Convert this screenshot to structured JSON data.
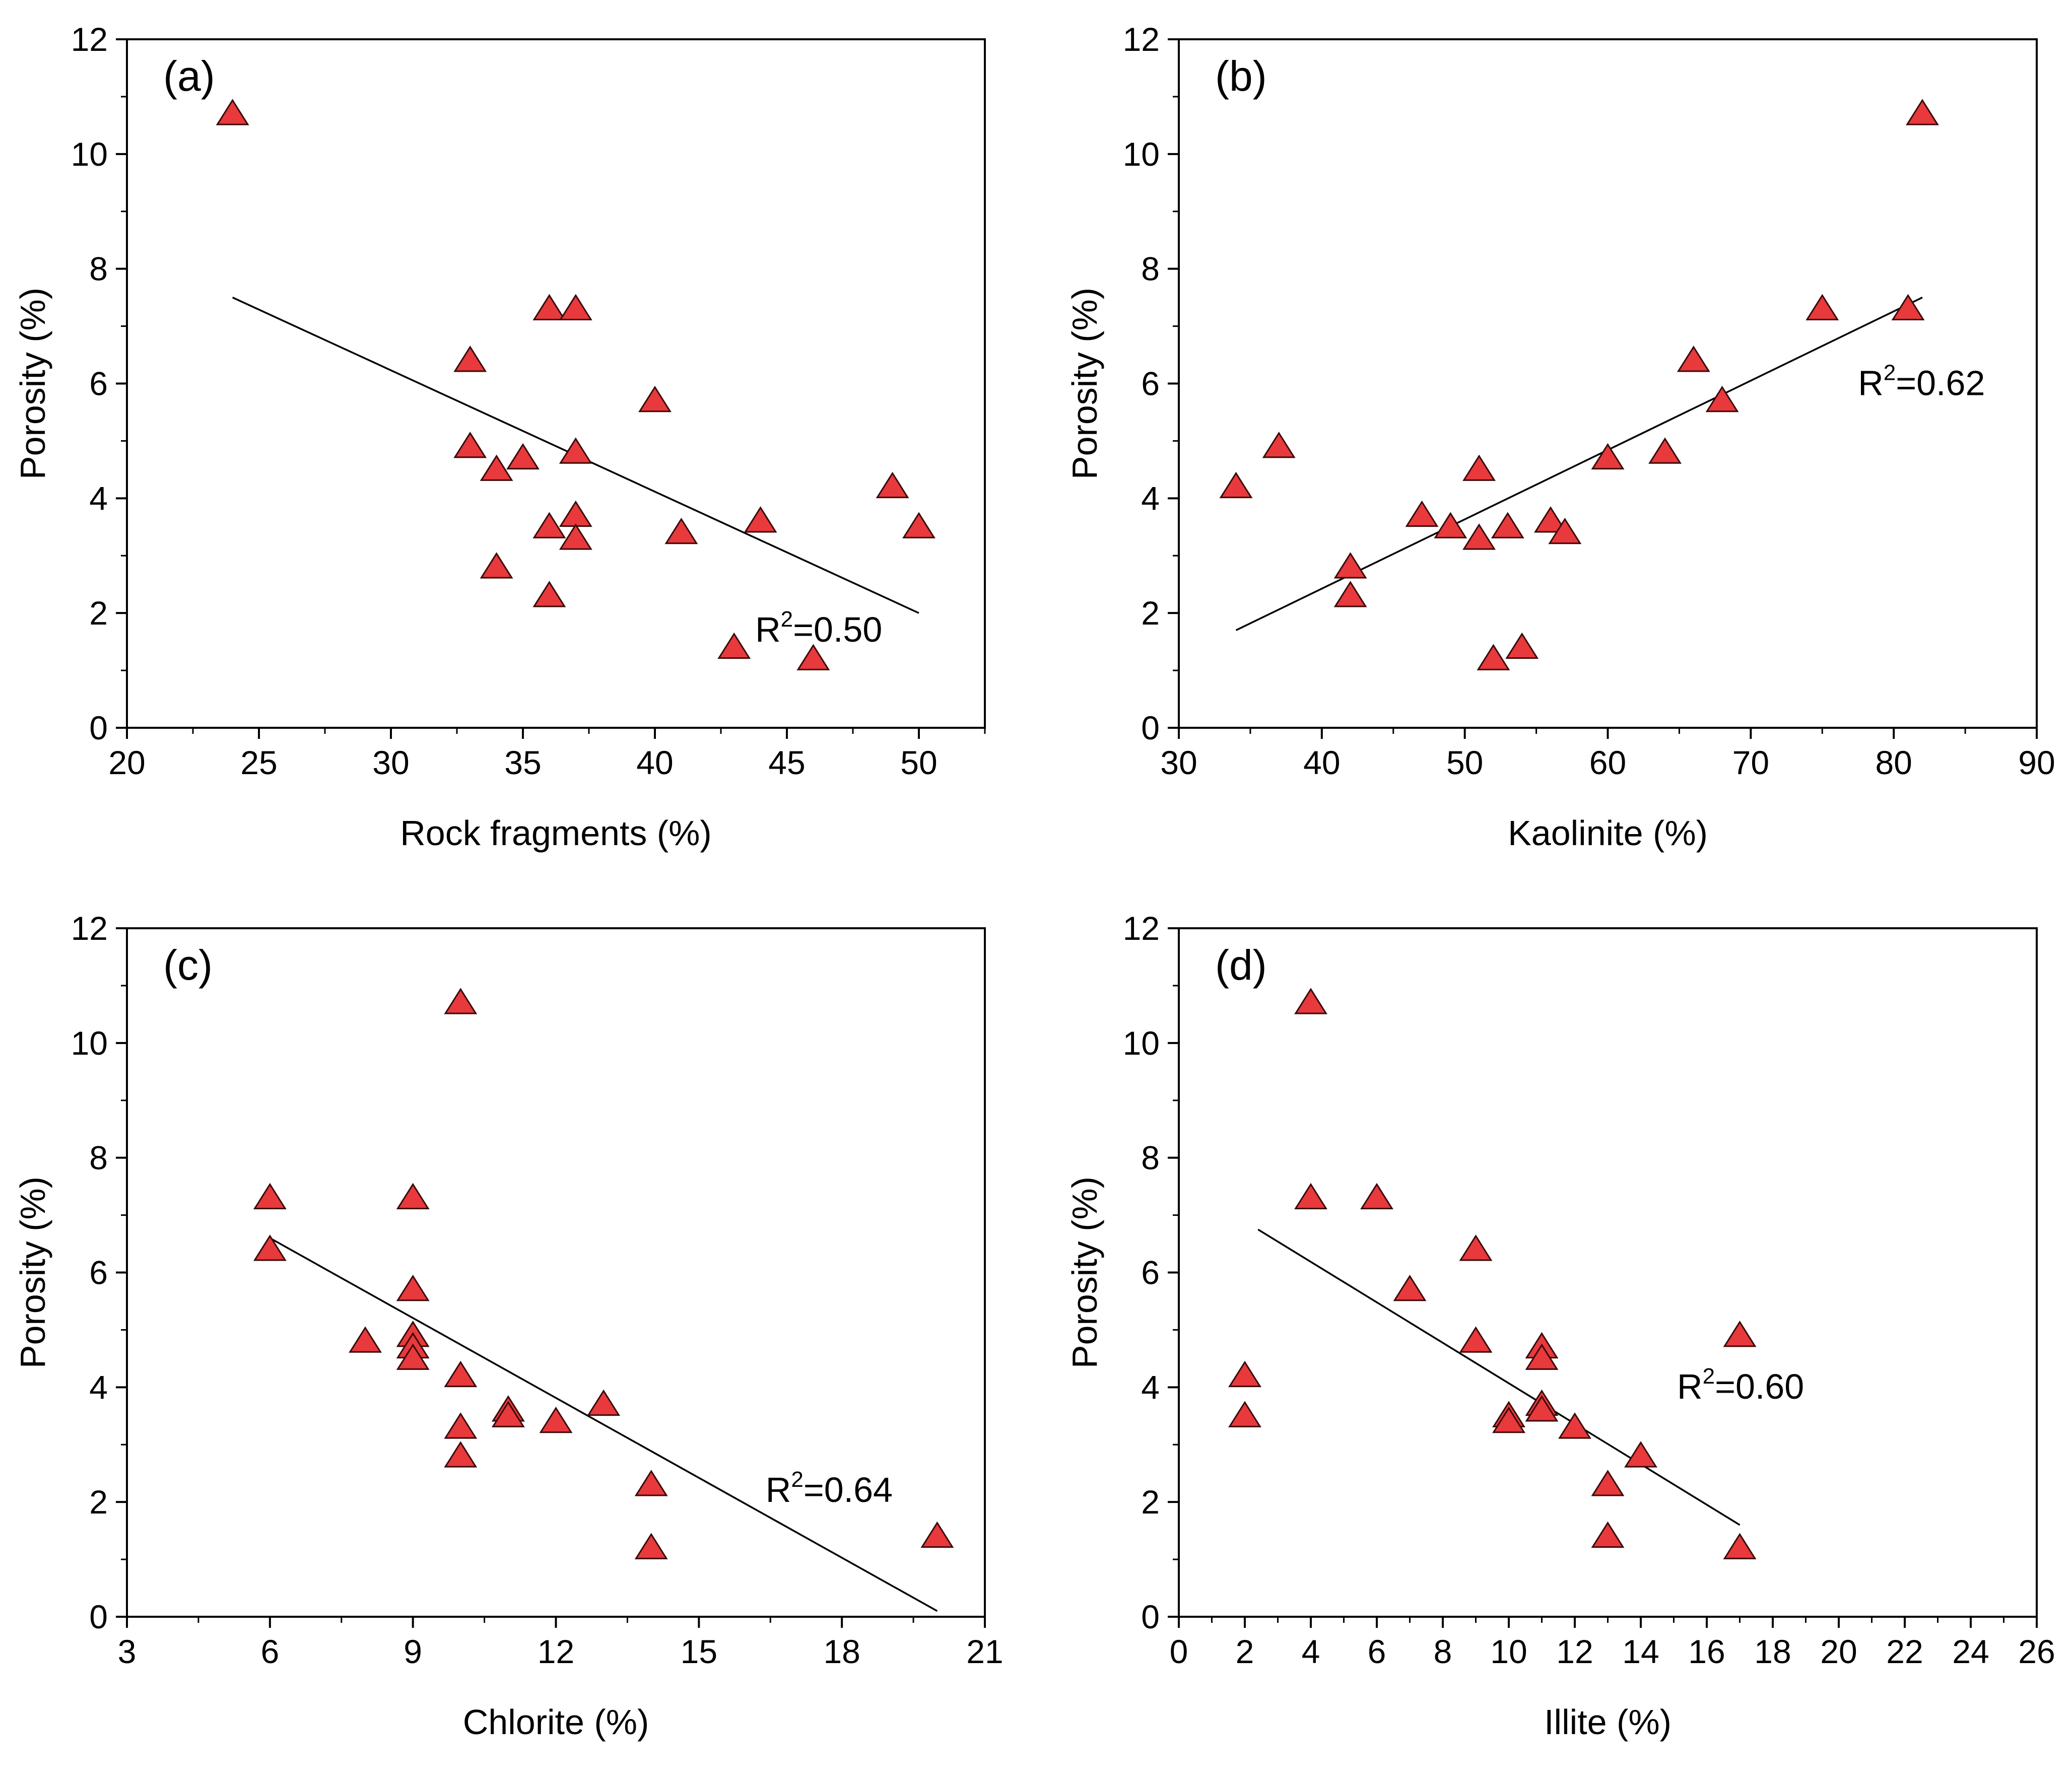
{
  "style": {
    "marker_fill": "#e8393c",
    "marker_stroke": "#3a0a0a",
    "line_color": "#000000"
  },
  "chart_data": [
    {
      "type": "scatter",
      "panel_label": "(a)",
      "xlabel": "Rock fragments (%)",
      "ylabel": "Porosity (%)",
      "xlim": [
        20,
        52.5
      ],
      "ylim": [
        0,
        12
      ],
      "xticks": [
        20,
        25,
        30,
        35,
        40,
        45,
        50
      ],
      "yticks": [
        0,
        2,
        4,
        6,
        8,
        10,
        12
      ],
      "x": [
        24,
        33,
        33,
        34,
        34,
        35,
        36,
        36,
        36,
        37,
        37,
        37,
        37,
        40,
        41,
        43,
        44,
        46,
        49,
        50
      ],
      "y": [
        10.7,
        6.4,
        4.9,
        4.5,
        2.8,
        4.7,
        7.3,
        3.5,
        2.3,
        7.3,
        4.8,
        3.7,
        3.3,
        5.7,
        3.4,
        1.4,
        3.6,
        1.2,
        4.2,
        3.5
      ],
      "fit_line": [
        [
          24,
          7.5
        ],
        [
          50,
          2.0
        ]
      ],
      "r2_text": {
        "base": "R",
        "sup": "2",
        "value": "=0.50",
        "x": 43.8,
        "y": 1.5
      }
    },
    {
      "type": "scatter",
      "panel_label": "(b)",
      "xlabel": "Kaolinite (%)",
      "ylabel": "Porosity (%)",
      "xlim": [
        30,
        90
      ],
      "ylim": [
        0,
        12
      ],
      "xticks": [
        30,
        40,
        50,
        60,
        70,
        80,
        90
      ],
      "yticks": [
        0,
        2,
        4,
        6,
        8,
        10,
        12
      ],
      "x": [
        34,
        37,
        42,
        42,
        47,
        49,
        51,
        51,
        52,
        53,
        54,
        56,
        57,
        60,
        64,
        66,
        68,
        75,
        81,
        82
      ],
      "y": [
        4.2,
        4.9,
        2.8,
        2.3,
        3.7,
        3.5,
        4.5,
        3.3,
        1.2,
        3.5,
        1.4,
        3.6,
        3.4,
        4.7,
        4.8,
        6.4,
        5.7,
        7.3,
        7.3,
        10.7
      ],
      "fit_line": [
        [
          34,
          1.7
        ],
        [
          82,
          7.5
        ]
      ],
      "r2_text": {
        "base": "R",
        "sup": "2",
        "value": "=0.62",
        "x": 77.5,
        "y": 5.8
      }
    },
    {
      "type": "scatter",
      "panel_label": "(c)",
      "xlabel": "Chlorite (%)",
      "ylabel": "Porosity (%)",
      "xlim": [
        3,
        21
      ],
      "ylim": [
        0,
        12
      ],
      "xticks": [
        3,
        6,
        9,
        12,
        15,
        18,
        21
      ],
      "yticks": [
        0,
        2,
        4,
        6,
        8,
        10,
        12
      ],
      "x": [
        6,
        6,
        8,
        9,
        9,
        9,
        9,
        9,
        10,
        10,
        10,
        10,
        11,
        11,
        12,
        13,
        14,
        14,
        20
      ],
      "y": [
        7.3,
        6.4,
        4.8,
        7.3,
        5.7,
        4.9,
        4.7,
        4.5,
        10.7,
        4.2,
        3.3,
        2.8,
        3.6,
        3.5,
        3.4,
        3.7,
        2.3,
        1.2,
        1.4
      ],
      "fit_line": [
        [
          6,
          6.6
        ],
        [
          20,
          0.1
        ]
      ],
      "r2_text": {
        "base": "R",
        "sup": "2",
        "value": "=0.64",
        "x": 16.4,
        "y": 2.0
      }
    },
    {
      "type": "scatter",
      "panel_label": "(d)",
      "xlabel": "Illite (%)",
      "ylabel": "Porosity (%)",
      "xlim": [
        0,
        26
      ],
      "ylim": [
        0,
        12
      ],
      "xticks": [
        0,
        2,
        4,
        6,
        8,
        10,
        12,
        14,
        16,
        18,
        20,
        22,
        24,
        26
      ],
      "yticks": [
        0,
        2,
        4,
        6,
        8,
        10,
        12
      ],
      "x": [
        2,
        2,
        4,
        4,
        6,
        7,
        9,
        9,
        10,
        10,
        11,
        11,
        11,
        11,
        12,
        13,
        13,
        14,
        17,
        17
      ],
      "y": [
        4.2,
        3.5,
        10.7,
        7.3,
        7.3,
        5.7,
        6.4,
        4.8,
        3.5,
        3.4,
        4.7,
        4.5,
        3.7,
        3.6,
        3.3,
        2.3,
        1.4,
        2.8,
        4.9,
        1.2
      ],
      "fit_line": [
        [
          2.4,
          6.75
        ],
        [
          17,
          1.6
        ]
      ],
      "r2_text": {
        "base": "R",
        "sup": "2",
        "value": "=0.60",
        "x": 15.1,
        "y": 3.8
      }
    }
  ]
}
